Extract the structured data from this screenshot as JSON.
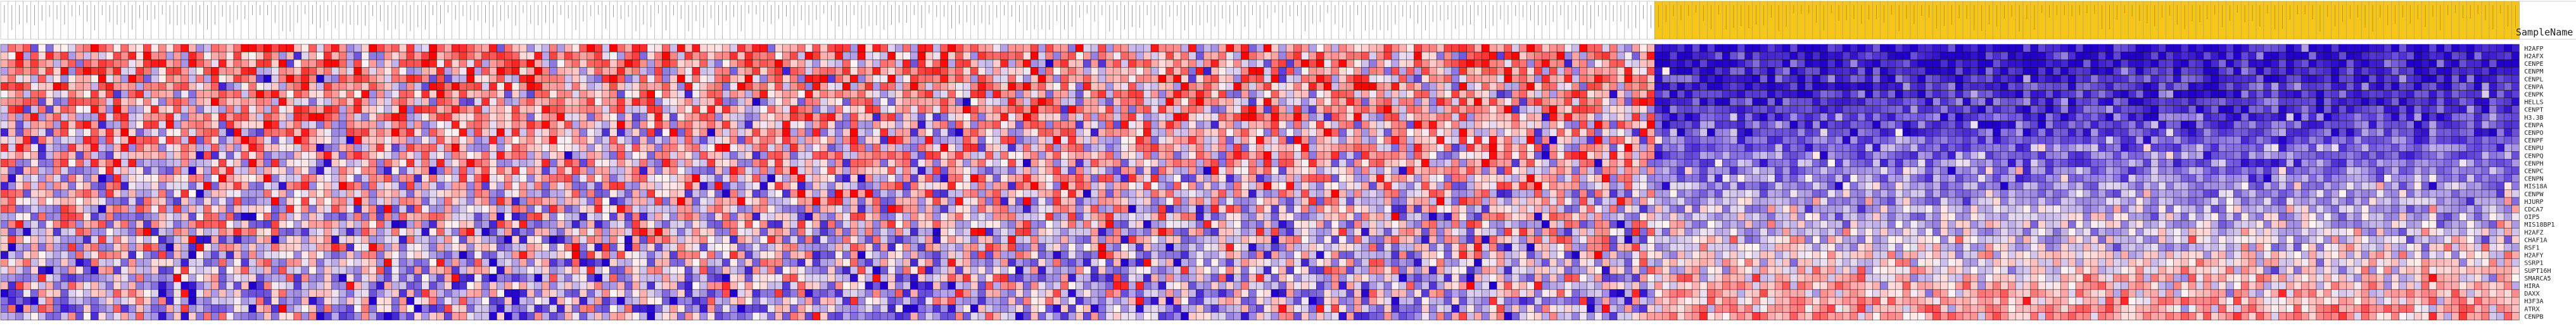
{
  "chart_data": {
    "type": "heatmap",
    "title": "",
    "xlabel": "",
    "ylabel": "",
    "header_row_label": "SampleName",
    "column_groups": [
      {
        "count": 220,
        "header_color": "#ffffff"
      },
      {
        "count": 115,
        "header_color": "#f5c518"
      }
    ],
    "column_labels_legible": false,
    "row_labels": [
      "H2AFP",
      "H2AFX",
      "CENPE",
      "CENPM",
      "CENPL",
      "CENPA",
      "CENPK",
      "HELLS",
      "CENPT",
      "H3.3B",
      "CENPA",
      "CENPO",
      "CENPF",
      "CENPU",
      "CENPQ",
      "CENPH",
      "CENPC",
      "CENPN",
      "MIS18A",
      "CENPW",
      "HJURP",
      "CDCA7",
      "OIP5",
      "MIS18BP1",
      "H2AFZ",
      "CHAF1A",
      "RSF1",
      "H2AFY",
      "SSRP1",
      "SUPT16H",
      "SMARCA5",
      "HIRA",
      "DAXX",
      "H3F3A",
      "ATRX",
      "CENPB"
    ],
    "value_scale": {
      "low_color": "#2200cc",
      "mid_color": "#fff5f5",
      "high_color": "#ff0000",
      "min": -1,
      "max": 1
    },
    "grid": true,
    "legend": "none",
    "pattern": "Columns in the white-header group are predominantly red/pink (positive); columns in the yellow-header group are predominantly blue (negative) in the upper rows, shifting toward light and pink in the bottom rows.",
    "seed": 20240611
  }
}
